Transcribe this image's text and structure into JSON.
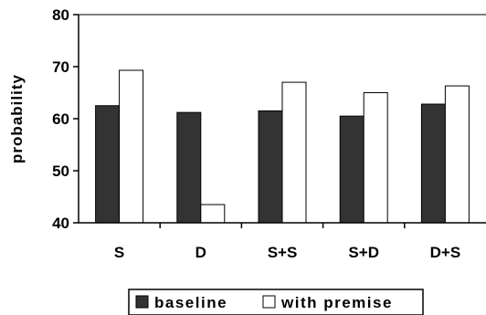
{
  "chart_data": {
    "type": "bar",
    "title": "",
    "xlabel": "",
    "ylabel": "probability",
    "ylim": [
      40,
      80
    ],
    "yticks": [
      40,
      50,
      60,
      70,
      80
    ],
    "categories": [
      "S",
      "D",
      "S+S",
      "S+D",
      "D+S"
    ],
    "series": [
      {
        "name": "baseline",
        "color": "#333333",
        "values": [
          62.5,
          61.2,
          61.5,
          60.5,
          62.8
        ]
      },
      {
        "name": "with premise",
        "color": "#ffffff",
        "values": [
          69.3,
          43.5,
          67.0,
          65.0,
          66.3
        ]
      }
    ],
    "grid": false,
    "legend": "bottom"
  }
}
